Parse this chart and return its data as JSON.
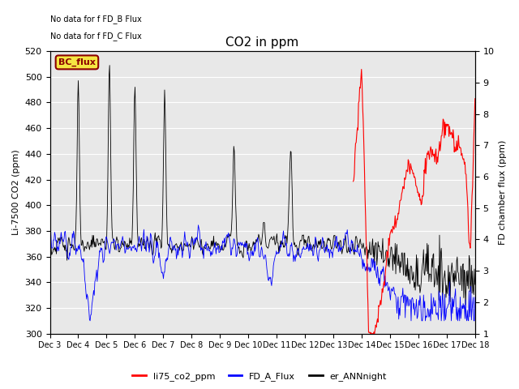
{
  "title": "CO2 in ppm",
  "ylabel_left": "Li-7500 CO2 (ppm)",
  "ylabel_right": "FD chamber flux (ppm)",
  "ylim_left": [
    300,
    520
  ],
  "ylim_right": [
    1.0,
    10.0
  ],
  "xtick_labels": [
    "Dec 3",
    "Dec 4",
    "Dec 5",
    "Dec 6",
    "Dec 7",
    "Dec 8",
    "Dec 9",
    "Dec 10",
    "Dec 11",
    "Dec 12",
    "Dec 13",
    "Dec 14",
    "Dec 15",
    "Dec 16",
    "Dec 17",
    "Dec 18"
  ],
  "annotation1": "No data for f FD_B Flux",
  "annotation2": "No data for f FD_C Flux",
  "bc_flux_label": "BC_flux",
  "legend_labels": [
    "li75_co2_ppm",
    "FD_A_Flux",
    "er_ANNnight"
  ],
  "bg_color": "#e8e8e8",
  "red_color": "#ff0000",
  "blue_color": "#0000ff",
  "black_color": "#000000",
  "figsize": [
    6.4,
    4.8
  ],
  "dpi": 100
}
